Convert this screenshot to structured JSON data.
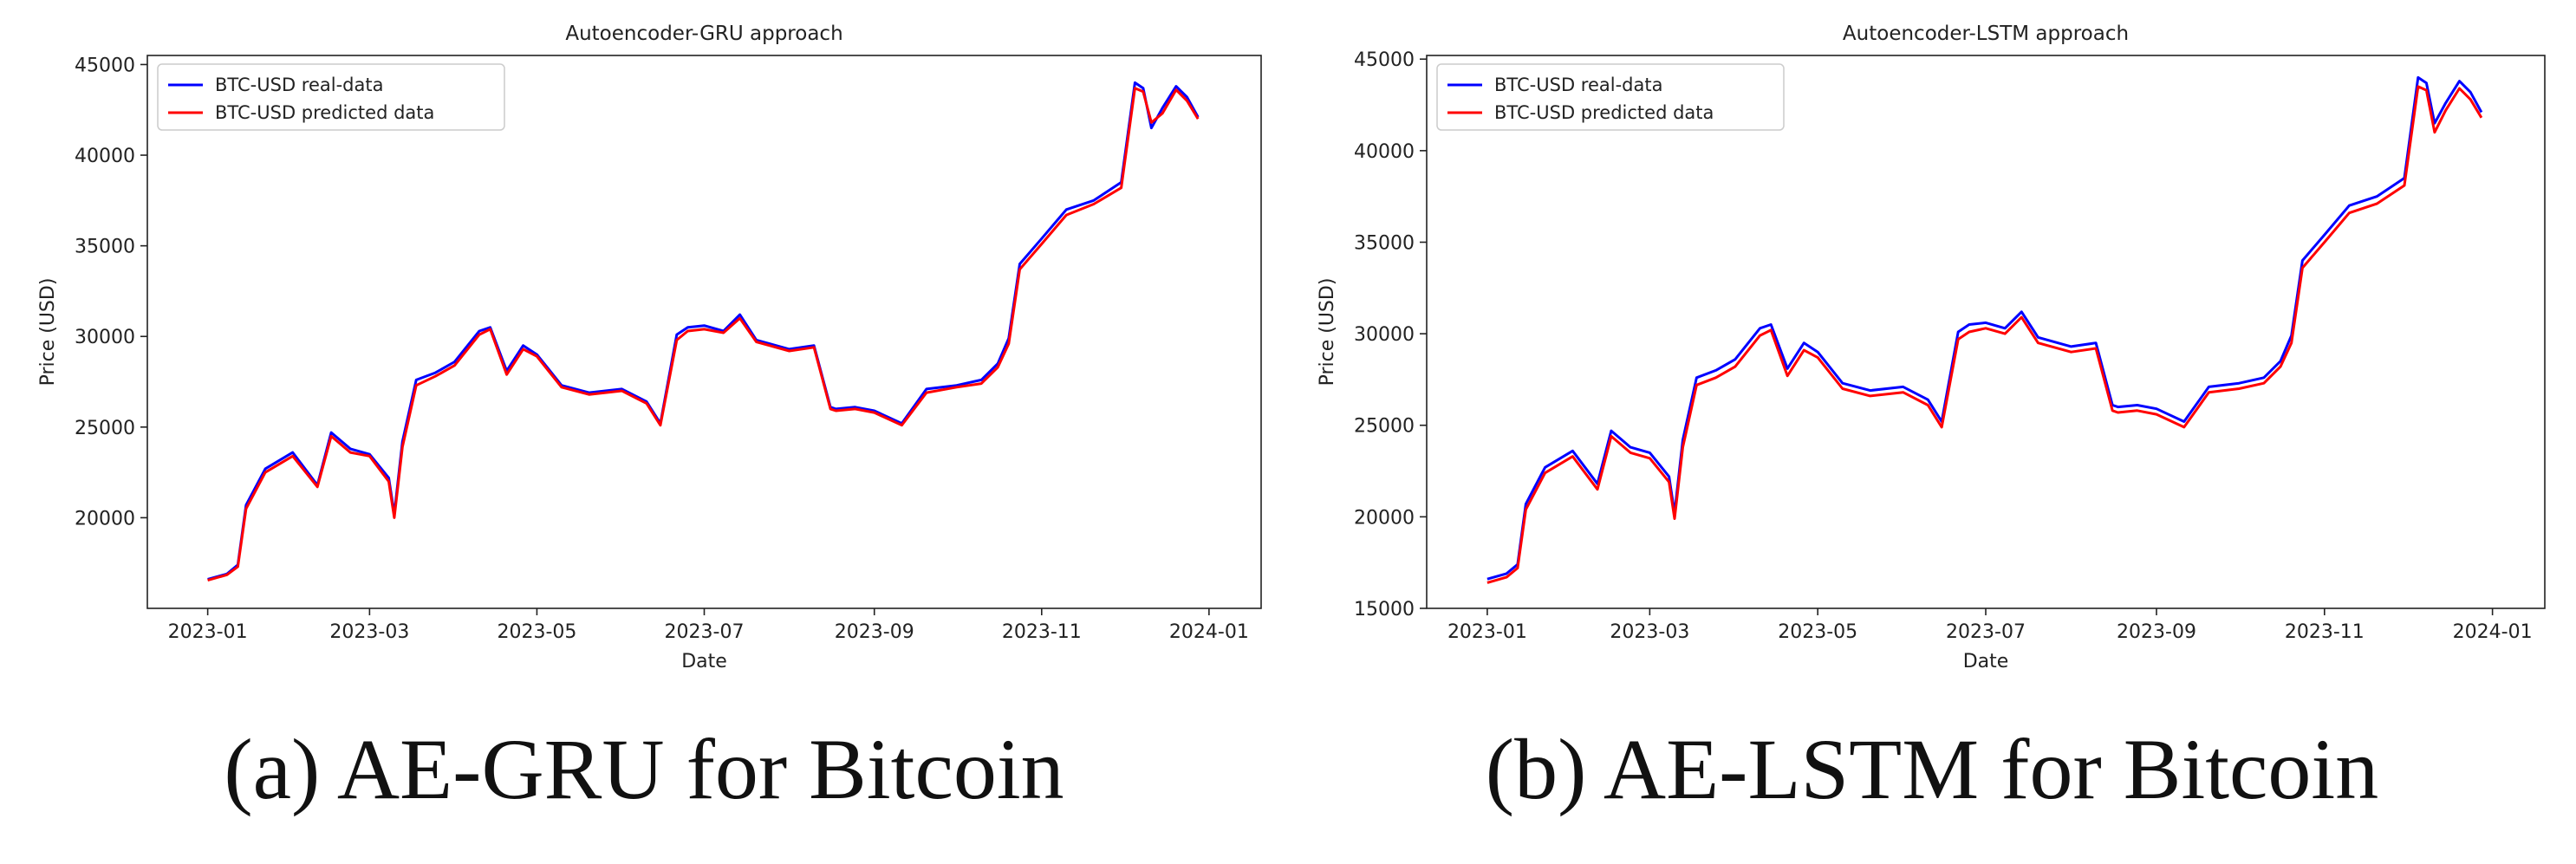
{
  "captions": {
    "a": "(a) AE-GRU for Bitcoin",
    "b": "(b) AE-LSTM for Bitcoin"
  },
  "chart_data": [
    {
      "type": "line",
      "title": "Autoencoder-GRU approach",
      "xlabel": "Date",
      "ylabel": "Price (USD)",
      "xlim": [
        "2022-12-10",
        "2024-01-20"
      ],
      "ylim": [
        15000,
        45500
      ],
      "x_ticks": [
        "2023-01",
        "2023-03",
        "2023-05",
        "2023-07",
        "2023-09",
        "2023-11",
        "2024-01"
      ],
      "y_ticks": [
        20000,
        25000,
        30000,
        35000,
        40000,
        45000
      ],
      "grid": false,
      "legend": "top-left",
      "x": [
        "2023-01-01",
        "2023-01-08",
        "2023-01-12",
        "2023-01-15",
        "2023-01-22",
        "2023-02-01",
        "2023-02-10",
        "2023-02-15",
        "2023-02-22",
        "2023-03-01",
        "2023-03-08",
        "2023-03-10",
        "2023-03-13",
        "2023-03-18",
        "2023-03-25",
        "2023-04-01",
        "2023-04-10",
        "2023-04-14",
        "2023-04-20",
        "2023-04-26",
        "2023-05-01",
        "2023-05-10",
        "2023-05-20",
        "2023-06-01",
        "2023-06-10",
        "2023-06-15",
        "2023-06-21",
        "2023-06-25",
        "2023-07-01",
        "2023-07-08",
        "2023-07-14",
        "2023-07-20",
        "2023-08-01",
        "2023-08-10",
        "2023-08-16",
        "2023-08-18",
        "2023-08-25",
        "2023-09-01",
        "2023-09-11",
        "2023-09-20",
        "2023-10-01",
        "2023-10-10",
        "2023-10-16",
        "2023-10-20",
        "2023-10-24",
        "2023-11-01",
        "2023-11-10",
        "2023-11-20",
        "2023-11-30",
        "2023-12-05",
        "2023-12-08",
        "2023-12-11",
        "2023-12-15",
        "2023-12-20",
        "2023-12-24",
        "2023-12-28"
      ],
      "series": [
        {
          "name": "BTC-USD real-data",
          "color": "#0000ff",
          "values": [
            16600,
            16900,
            17400,
            20700,
            22700,
            23600,
            21800,
            24700,
            23800,
            23500,
            22200,
            20200,
            24200,
            27600,
            28000,
            28600,
            30300,
            30500,
            28100,
            29500,
            29000,
            27300,
            26900,
            27100,
            26400,
            25200,
            30100,
            30500,
            30600,
            30300,
            31200,
            29800,
            29300,
            29500,
            26100,
            26000,
            26100,
            25900,
            25200,
            27100,
            27300,
            27600,
            28500,
            29900,
            34000,
            35400,
            37000,
            37500,
            38500,
            44000,
            43700,
            41500,
            42600,
            43800,
            43200,
            42100
          ]
        },
        {
          "name": "BTC-USD predicted data",
          "color": "#ff0000",
          "values": [
            16550,
            16850,
            17300,
            20500,
            22500,
            23400,
            21700,
            24500,
            23600,
            23400,
            22000,
            20000,
            23900,
            27300,
            27800,
            28400,
            30100,
            30400,
            27900,
            29300,
            28900,
            27200,
            26800,
            27000,
            26300,
            25100,
            29800,
            30300,
            30400,
            30200,
            31000,
            29700,
            29200,
            29400,
            26000,
            25900,
            26000,
            25800,
            25100,
            26900,
            27200,
            27400,
            28300,
            29600,
            33700,
            35100,
            36700,
            37300,
            38200,
            43700,
            43500,
            41800,
            42300,
            43600,
            43000,
            42000
          ]
        }
      ]
    },
    {
      "type": "line",
      "title": "Autoencoder-LSTM approach",
      "xlabel": "Date",
      "ylabel": "Price (USD)",
      "xlim": [
        "2022-12-10",
        "2024-01-20"
      ],
      "ylim": [
        15000,
        45200
      ],
      "x_ticks": [
        "2023-01",
        "2023-03",
        "2023-05",
        "2023-07",
        "2023-09",
        "2023-11",
        "2024-01"
      ],
      "y_ticks": [
        15000,
        20000,
        25000,
        30000,
        35000,
        40000,
        45000
      ],
      "grid": false,
      "legend": "top-left",
      "x": [
        "2023-01-01",
        "2023-01-08",
        "2023-01-12",
        "2023-01-15",
        "2023-01-22",
        "2023-02-01",
        "2023-02-10",
        "2023-02-15",
        "2023-02-22",
        "2023-03-01",
        "2023-03-08",
        "2023-03-10",
        "2023-03-13",
        "2023-03-18",
        "2023-03-25",
        "2023-04-01",
        "2023-04-10",
        "2023-04-14",
        "2023-04-20",
        "2023-04-26",
        "2023-05-01",
        "2023-05-10",
        "2023-05-20",
        "2023-06-01",
        "2023-06-10",
        "2023-06-15",
        "2023-06-21",
        "2023-06-25",
        "2023-07-01",
        "2023-07-08",
        "2023-07-14",
        "2023-07-20",
        "2023-08-01",
        "2023-08-10",
        "2023-08-16",
        "2023-08-18",
        "2023-08-25",
        "2023-09-01",
        "2023-09-11",
        "2023-09-20",
        "2023-10-01",
        "2023-10-10",
        "2023-10-16",
        "2023-10-20",
        "2023-10-24",
        "2023-11-01",
        "2023-11-10",
        "2023-11-20",
        "2023-11-30",
        "2023-12-05",
        "2023-12-08",
        "2023-12-11",
        "2023-12-15",
        "2023-12-20",
        "2023-12-24",
        "2023-12-28"
      ],
      "series": [
        {
          "name": "BTC-USD real-data",
          "color": "#0000ff",
          "values": [
            16600,
            16900,
            17400,
            20700,
            22700,
            23600,
            21800,
            24700,
            23800,
            23500,
            22200,
            20200,
            24200,
            27600,
            28000,
            28600,
            30300,
            30500,
            28100,
            29500,
            29000,
            27300,
            26900,
            27100,
            26400,
            25200,
            30100,
            30500,
            30600,
            30300,
            31200,
            29800,
            29300,
            29500,
            26100,
            26000,
            26100,
            25900,
            25200,
            27100,
            27300,
            27600,
            28500,
            29900,
            34000,
            35400,
            37000,
            37500,
            38500,
            44000,
            43700,
            41500,
            42600,
            43800,
            43200,
            42100
          ]
        },
        {
          "name": "BTC-USD predicted data",
          "color": "#ff0000",
          "values": [
            16400,
            16700,
            17200,
            20400,
            22400,
            23300,
            21500,
            24400,
            23500,
            23200,
            21900,
            19900,
            23800,
            27200,
            27600,
            28200,
            29900,
            30200,
            27700,
            29100,
            28700,
            27000,
            26600,
            26800,
            26100,
            24900,
            29700,
            30100,
            30300,
            30000,
            30900,
            29500,
            29000,
            29200,
            25800,
            25700,
            25800,
            25600,
            24900,
            26800,
            27000,
            27300,
            28200,
            29500,
            33600,
            35000,
            36600,
            37100,
            38100,
            43500,
            43300,
            41000,
            42200,
            43400,
            42800,
            41800
          ]
        }
      ]
    }
  ]
}
